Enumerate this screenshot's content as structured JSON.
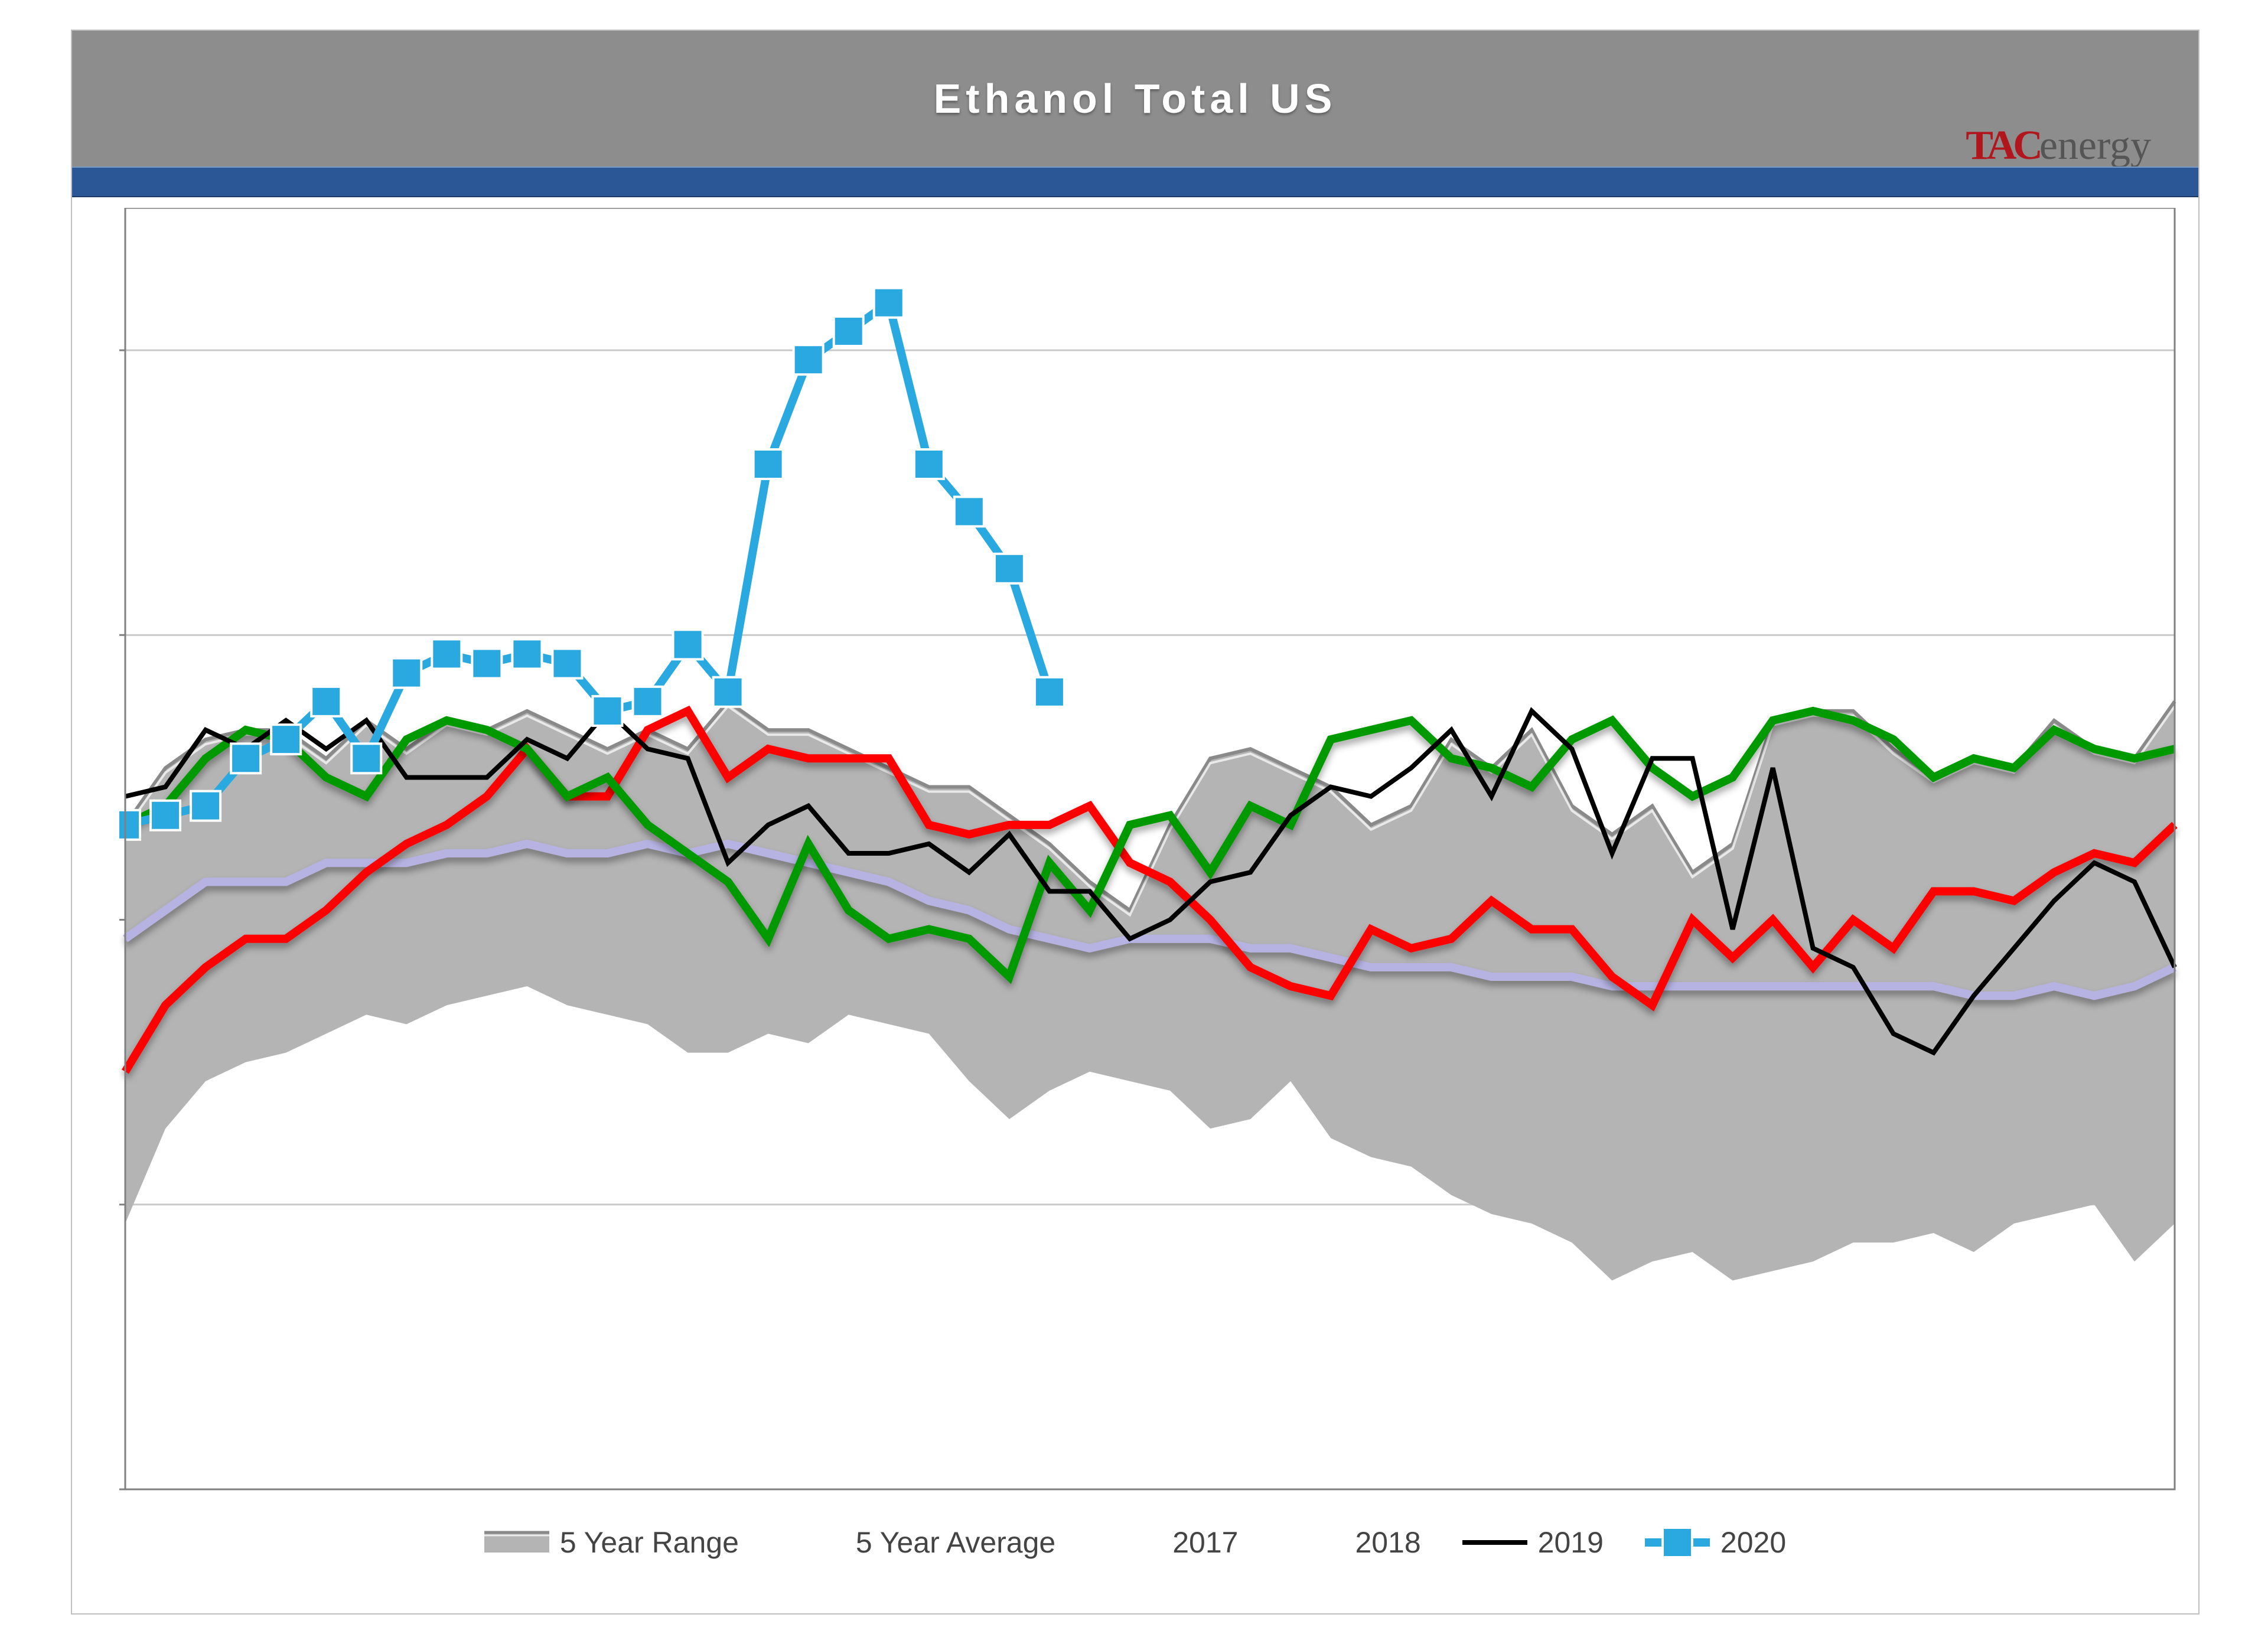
{
  "chart": {
    "type": "line",
    "title": "Ethanol Total US",
    "logo": {
      "brand_left": "TAC",
      "brand_right": "energy",
      "color_left": "#b1161c",
      "color_right": "#555555"
    },
    "title_band_color": "#8d8d8d",
    "blue_band_color": "#2b5797",
    "background_color": "#ffffff",
    "grid_color": "#c9c9c9",
    "axis_color": "#808080",
    "n_points": 52,
    "y": {
      "min": 15000,
      "max": 28500,
      "gridlines": [
        18000,
        21000,
        24000,
        27000
      ],
      "baseline": 15000
    },
    "range": {
      "fill": "#b4b4b4",
      "top_stroke": "#8a8a8a",
      "upper": [
        22000,
        22600,
        22900,
        23000,
        23000,
        22700,
        23100,
        22800,
        23100,
        23000,
        23200,
        23000,
        22800,
        23000,
        22800,
        23300,
        23000,
        23000,
        22800,
        22600,
        22400,
        22400,
        22100,
        21800,
        21400,
        21100,
        22000,
        22700,
        22800,
        22600,
        22400,
        22000,
        22200,
        22900,
        22600,
        23000,
        22200,
        21900,
        22200,
        21500,
        21800,
        23100,
        23200,
        23200,
        22800,
        22500,
        22700,
        22600,
        23100,
        22800,
        22700,
        23300
      ],
      "lower": [
        17800,
        18800,
        19300,
        19500,
        19600,
        19800,
        20000,
        19900,
        20100,
        20200,
        20300,
        20100,
        20000,
        19900,
        19600,
        19600,
        19800,
        19700,
        20000,
        19900,
        19800,
        19300,
        18900,
        19200,
        19400,
        19300,
        19200,
        18800,
        18900,
        19300,
        18700,
        18500,
        18400,
        18100,
        17900,
        17800,
        17600,
        17200,
        17400,
        17500,
        17200,
        17300,
        17400,
        17600,
        17600,
        17700,
        17500,
        17800,
        17900,
        18000,
        17400,
        17800
      ]
    },
    "series": {
      "avg5": {
        "label": "5 Year Average",
        "color": "#b6b3e3",
        "width": 14,
        "shadow": true,
        "data": [
          20800,
          21100,
          21400,
          21400,
          21400,
          21600,
          21600,
          21600,
          21700,
          21700,
          21800,
          21700,
          21700,
          21800,
          21700,
          21800,
          21700,
          21600,
          21500,
          21400,
          21200,
          21100,
          20900,
          20800,
          20700,
          20800,
          20800,
          20800,
          20700,
          20700,
          20600,
          20500,
          20500,
          20500,
          20400,
          20400,
          20400,
          20300,
          20300,
          20300,
          20300,
          20300,
          20300,
          20300,
          20300,
          20300,
          20200,
          20200,
          20300,
          20200,
          20300,
          20500
        ]
      },
      "y2017": {
        "label": "2017",
        "color": "#ff0000",
        "width": 14,
        "shadow": true,
        "data": [
          19400,
          20100,
          20500,
          20800,
          20800,
          21100,
          21500,
          21800,
          22000,
          22300,
          22800,
          22300,
          22300,
          23000,
          23200,
          22500,
          22800,
          22700,
          22700,
          22700,
          22000,
          21900,
          22000,
          22000,
          22200,
          21600,
          21400,
          21000,
          20500,
          20300,
          20200,
          20900,
          20700,
          20800,
          21200,
          20900,
          20900,
          20400,
          20100,
          21000,
          20600,
          21000,
          20500,
          21000,
          20700,
          21300,
          21300,
          21200,
          21500,
          21700,
          21600,
          22000
        ]
      },
      "y2018": {
        "label": "2018",
        "color": "#009900",
        "width": 14,
        "shadow": true,
        "data": [
          22000,
          22200,
          22700,
          23000,
          22900,
          22500,
          22300,
          22900,
          23100,
          23000,
          22800,
          22300,
          22500,
          22000,
          21700,
          21400,
          20800,
          21800,
          21100,
          20800,
          20900,
          20800,
          20400,
          21600,
          21100,
          22000,
          22100,
          21500,
          22200,
          22000,
          22900,
          23000,
          23100,
          22700,
          22600,
          22400,
          22900,
          23100,
          22600,
          22300,
          22500,
          23100,
          23200,
          23100,
          22900,
          22500,
          22700,
          22600,
          23000,
          22800,
          22700,
          22800
        ]
      },
      "y2019": {
        "label": "2019",
        "color": "#000000",
        "width": 8,
        "shadow": false,
        "data": [
          22300,
          22400,
          23000,
          22800,
          23100,
          22800,
          23100,
          22500,
          22500,
          22500,
          22900,
          22700,
          23200,
          22800,
          22700,
          21600,
          22000,
          22200,
          21700,
          21700,
          21800,
          21500,
          21900,
          21300,
          21300,
          20800,
          21000,
          21400,
          21500,
          22100,
          22400,
          22300,
          22600,
          23000,
          22300,
          23200,
          22800,
          21700,
          22700,
          22700,
          20900,
          22600,
          20700,
          20500,
          19800,
          19600,
          20200,
          20700,
          21200,
          21600,
          21400,
          20500
        ]
      },
      "y2020": {
        "label": "2020",
        "color": "#2aa9e0",
        "width": 14,
        "shadow": false,
        "marker": "square",
        "marker_size": 50,
        "data": [
          22000,
          22100,
          22200,
          22700,
          22900,
          23300,
          22700,
          23600,
          23800,
          23700,
          23800,
          23700,
          23200,
          23300,
          23900,
          23400,
          25800,
          26900,
          27200,
          27500,
          25800,
          25300,
          24700,
          23400
        ]
      }
    },
    "legend": {
      "order": [
        "range",
        "avg5",
        "y2017",
        "y2018",
        "y2019",
        "y2020"
      ],
      "labels": {
        "range": "5 Year Range",
        "avg5": "5 Year Average",
        "y2017": "2017",
        "y2018": "2018",
        "y2019": "2019",
        "y2020": "2020"
      },
      "font_size": 50,
      "text_color": "#444444"
    }
  }
}
